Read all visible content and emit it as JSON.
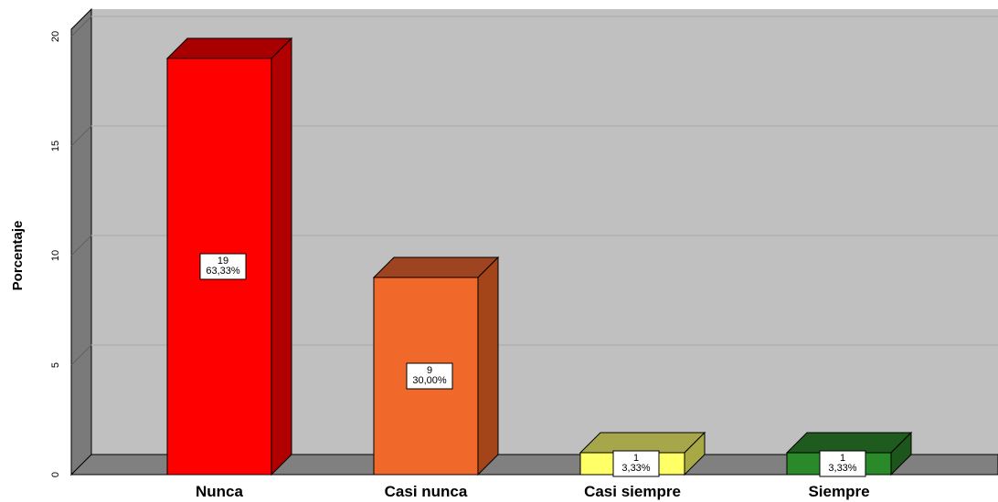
{
  "chart_data": {
    "type": "bar",
    "categories": [
      "Nunca",
      "Casi nunca",
      "Casi siempre",
      "Siempre"
    ],
    "values": [
      19,
      9,
      1,
      1
    ],
    "data_labels": [
      [
        "19",
        "63,33%"
      ],
      [
        "9",
        "30,00%"
      ],
      [
        "1",
        "3,33%"
      ],
      [
        "1",
        "3,33%"
      ]
    ],
    "ylabel": "Porcentaje",
    "xlabel": "",
    "ylim": [
      0,
      20
    ],
    "yticks": [
      "0",
      "5",
      "10",
      "15",
      "20"
    ],
    "grid": true,
    "colors": {
      "front": [
        "#ff0000",
        "#f0692b",
        "#ffff66",
        "#2a8a2a"
      ],
      "top": [
        "#a80000",
        "#9e4420",
        "#a6a64a",
        "#1f5a1f"
      ],
      "side": [
        "#b00000",
        "#a34419",
        "#a8a844",
        "#1c561c"
      ],
      "wall": "#c0c0c0",
      "floor": "#808080",
      "side_wall": "#7a7a7a",
      "gridline": "#b0b0b0"
    }
  }
}
